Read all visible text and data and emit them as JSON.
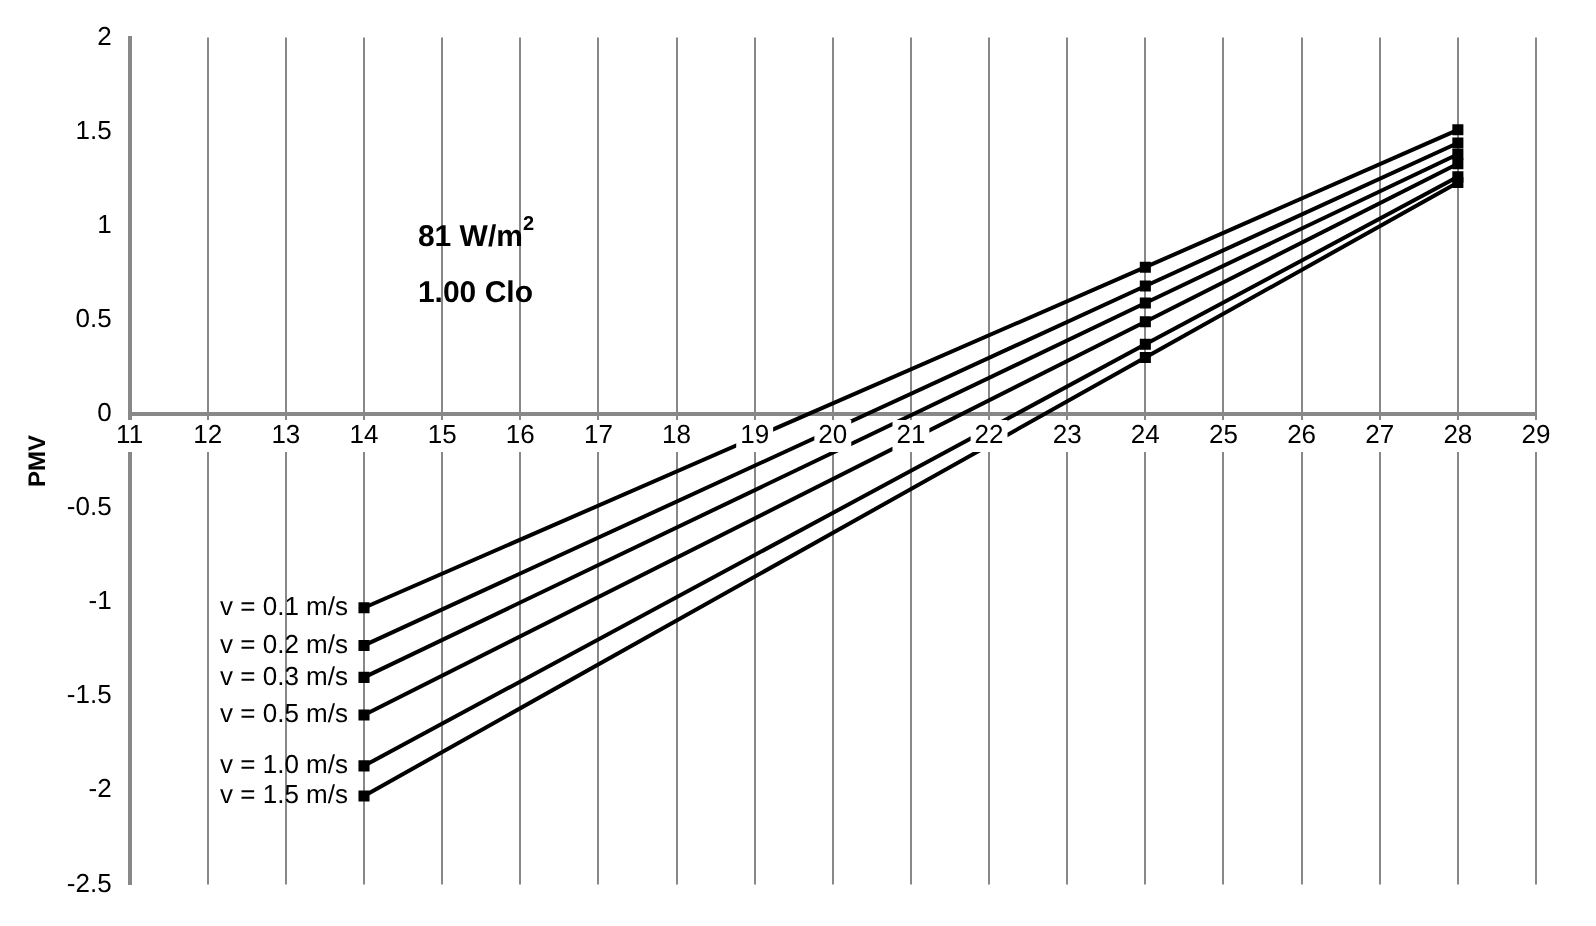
{
  "chart_data": {
    "type": "line",
    "ylabel": "PMV",
    "annotations": [
      "81 W/m$^{2}$",
      "1.00 Clo"
    ],
    "xlim": [
      11,
      29
    ],
    "xticks": [
      11,
      12,
      13,
      14,
      15,
      16,
      17,
      18,
      19,
      20,
      21,
      22,
      23,
      24,
      25,
      26,
      27,
      28,
      29
    ],
    "ylim": [
      -2.5,
      2
    ],
    "yticks": [
      -2.5,
      -2,
      -1.5,
      -1,
      -0.5,
      0,
      0.5,
      1,
      1.5,
      2
    ],
    "grid": "x",
    "legend": false,
    "marker": "square",
    "line_style": "solid",
    "series": [
      {
        "name": "v = 0.1 m/s",
        "color": "#000000",
        "x": [
          14,
          24,
          28
        ],
        "values": [
          -1.03,
          0.78,
          1.51
        ]
      },
      {
        "name": "v = 0.2 m/s",
        "color": "#000000",
        "x": [
          14,
          24,
          28
        ],
        "values": [
          -1.23,
          0.68,
          1.44
        ]
      },
      {
        "name": "v = 0.3 m/s",
        "color": "#000000",
        "x": [
          14,
          24,
          28
        ],
        "values": [
          -1.4,
          0.59,
          1.38
        ]
      },
      {
        "name": "v = 0.5 m/s",
        "color": "#000000",
        "x": [
          14,
          24,
          28
        ],
        "values": [
          -1.6,
          0.49,
          1.33
        ]
      },
      {
        "name": "v = 1.0 m/s",
        "color": "#000000",
        "x": [
          14,
          24,
          28
        ],
        "values": [
          -1.87,
          0.37,
          1.26
        ]
      },
      {
        "name": "v = 1.5 m/s",
        "color": "#000000",
        "x": [
          14,
          24,
          28
        ],
        "values": [
          -2.03,
          0.3,
          1.23
        ]
      }
    ]
  }
}
